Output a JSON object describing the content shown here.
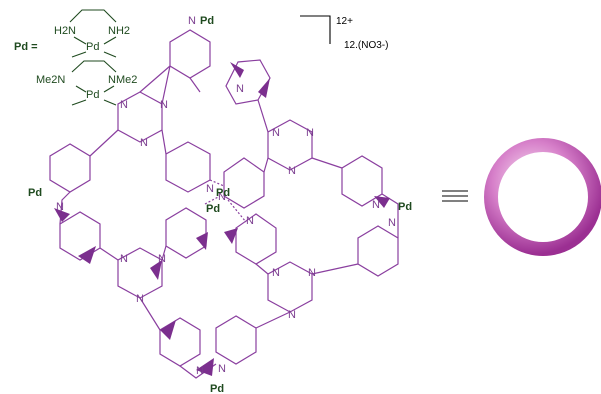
{
  "legend": {
    "pd_label": "Pd =",
    "ligand1_n_left": "H2N",
    "ligand1_n_right": "NH2",
    "ligand1_metal": "Pd",
    "ligand2_n_left": "Me2N",
    "ligand2_n_right": "NMe2",
    "ligand2_metal": "Pd"
  },
  "charge": {
    "cation_charge": "12+",
    "counterions": "12.(NO3-)"
  },
  "atoms": {
    "metal": "Pd",
    "nitrogen": "N"
  },
  "equivalence_symbol": "≡",
  "colors": {
    "framework": "#8a3f9f",
    "wedge": "#7b2f8e",
    "metal_label": "#1f4a1f",
    "ring_outer": "#c85bb8",
    "ring_inner": "#ffffff"
  },
  "icons": {
    "cage_schematic": "ring-icon"
  }
}
